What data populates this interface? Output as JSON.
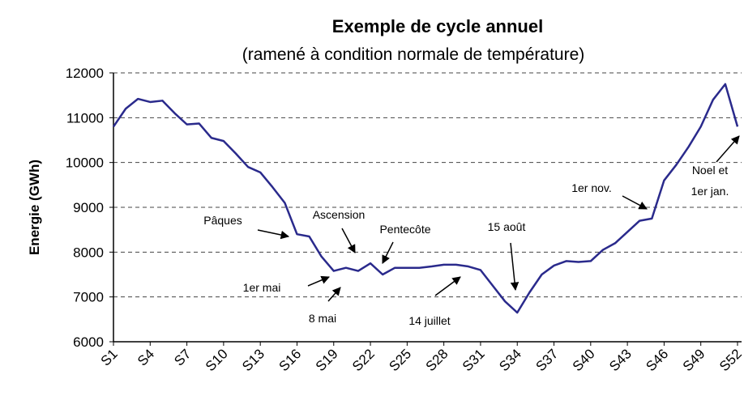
{
  "chart_data": {
    "type": "line",
    "title": "Exemple de cycle annuel",
    "subtitle": "(ramené à condition normale de température)",
    "y_label": "Energie (GWh)",
    "categories": [
      "S1",
      null,
      null,
      "S4",
      null,
      null,
      "S7",
      null,
      null,
      "S10",
      null,
      null,
      "S13",
      null,
      null,
      "S16",
      null,
      null,
      "S19",
      null,
      null,
      "S22",
      null,
      null,
      "S25",
      null,
      null,
      "S28",
      null,
      null,
      "S31",
      null,
      null,
      "S34",
      null,
      null,
      "S37",
      null,
      null,
      "S40",
      null,
      null,
      "S43",
      null,
      null,
      "S46",
      null,
      null,
      "S49",
      null,
      null,
      "S52"
    ],
    "series": [
      {
        "color": "#2a2a8c",
        "values": [
          10800,
          11200,
          11420,
          11350,
          11380,
          11100,
          10850,
          10870,
          10550,
          10480,
          10200,
          9900,
          9780,
          9450,
          9100,
          8400,
          8350,
          7900,
          7580,
          7650,
          7580,
          7750,
          7500,
          7650,
          7650,
          7650,
          7680,
          7720,
          7720,
          7680,
          7600,
          7250,
          6900,
          6650,
          7100,
          7500,
          7700,
          7800,
          7780,
          7800,
          8050,
          8200,
          8450,
          8700,
          8750,
          9600,
          9950,
          10350,
          10800,
          11400,
          11750,
          10800
        ]
      }
    ],
    "ylim": [
      6000,
      12000
    ],
    "yticks": [
      6000,
      7000,
      8000,
      9000,
      10000,
      11000,
      12000
    ],
    "grid": true,
    "annotations": [
      "Pâques",
      "Ascension",
      "Pentecôte",
      "15 août",
      "1er nov.",
      "Noel et",
      "1er jan.",
      "1er mai",
      "8 mai",
      "14 juillet"
    ]
  }
}
